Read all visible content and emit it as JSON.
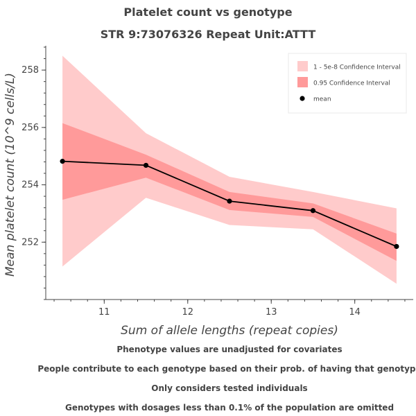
{
  "header": {
    "title": "Platelet count vs genotype",
    "subtitle": "STR 9:73076326 Repeat Unit:ATTT"
  },
  "chart_data": {
    "type": "line",
    "title": "Platelet count vs genotype",
    "subtitle": "STR 9:73076326 Repeat Unit:ATTT",
    "xlabel": "Sum of allele lengths (repeat copies)",
    "ylabel": "Mean platelet count (10^9 cells/L)",
    "xlim": [
      10.3,
      14.7
    ],
    "ylim": [
      250.0,
      258.8
    ],
    "x_ticks": [
      11,
      12,
      13,
      14
    ],
    "y_ticks": [
      252,
      254,
      256,
      258
    ],
    "x": [
      10.5,
      11.5,
      12.5,
      13.5,
      14.5
    ],
    "series": [
      {
        "name": "mean",
        "values": [
          254.82,
          254.68,
          253.43,
          253.1,
          251.85
        ],
        "color": "#000000"
      },
      {
        "name": "0.95 Confidence Interval",
        "lower": [
          253.48,
          254.25,
          253.12,
          252.88,
          251.35
        ],
        "upper": [
          256.15,
          255.05,
          253.75,
          253.35,
          252.3
        ],
        "color": "#ff9a9a"
      },
      {
        "name": "1 - 5e-8 Confidence Interval",
        "lower": [
          251.15,
          253.55,
          252.6,
          252.45,
          250.55
        ],
        "upper": [
          258.5,
          255.8,
          254.28,
          253.75,
          253.18
        ],
        "color": "#ffcbcb"
      }
    ],
    "legend": {
      "position": "top-right",
      "items": [
        {
          "label": "1 - 5e-8 Confidence Interval",
          "color": "#ffcbcb",
          "marker": "square"
        },
        {
          "label": "0.95 Confidence Interval",
          "color": "#ff9a9a",
          "marker": "square"
        },
        {
          "label": "mean",
          "color": "#000000",
          "marker": "circle"
        }
      ]
    }
  },
  "footer_notes": [
    "Phenotype values are unadjusted for covariates",
    "People contribute to each genotype based on their prob. of having that genotype",
    "Only considers tested individuals",
    "Genotypes with dosages less than 0.1% of the population are omitted"
  ]
}
